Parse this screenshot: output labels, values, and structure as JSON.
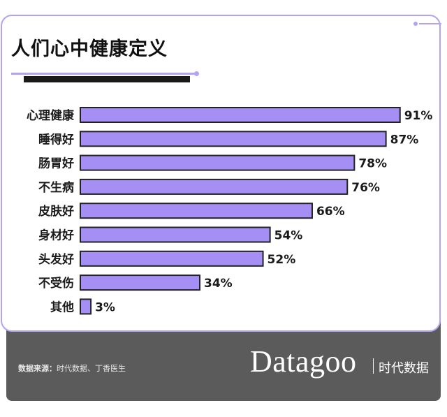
{
  "title": "人们心中健康定义",
  "source": {
    "label": "数据来源：",
    "text": "时代数据、丁香医生"
  },
  "brand": {
    "name": "Datagoo",
    "cn": "时代数据"
  },
  "colors": {
    "bar": "#a58ff5",
    "bar_border": "#222222",
    "accent": "#b4a2f2",
    "footer": "#5b5b5b"
  },
  "chart_data": {
    "type": "bar",
    "orientation": "horizontal",
    "title": "人们心中健康定义",
    "categories": [
      "心理健康",
      "睡得好",
      "肠胃好",
      "不生病",
      "皮肤好",
      "身材好",
      "头发好",
      "不受伤",
      "其他"
    ],
    "values": [
      91,
      87,
      78,
      76,
      66,
      54,
      52,
      34,
      3
    ],
    "labels": [
      "91%",
      "87%",
      "78%",
      "76%",
      "66%",
      "54%",
      "52%",
      "34%",
      "3%"
    ],
    "unit": "%",
    "xlim": [
      0,
      100
    ],
    "grid": false,
    "legend": "none"
  }
}
